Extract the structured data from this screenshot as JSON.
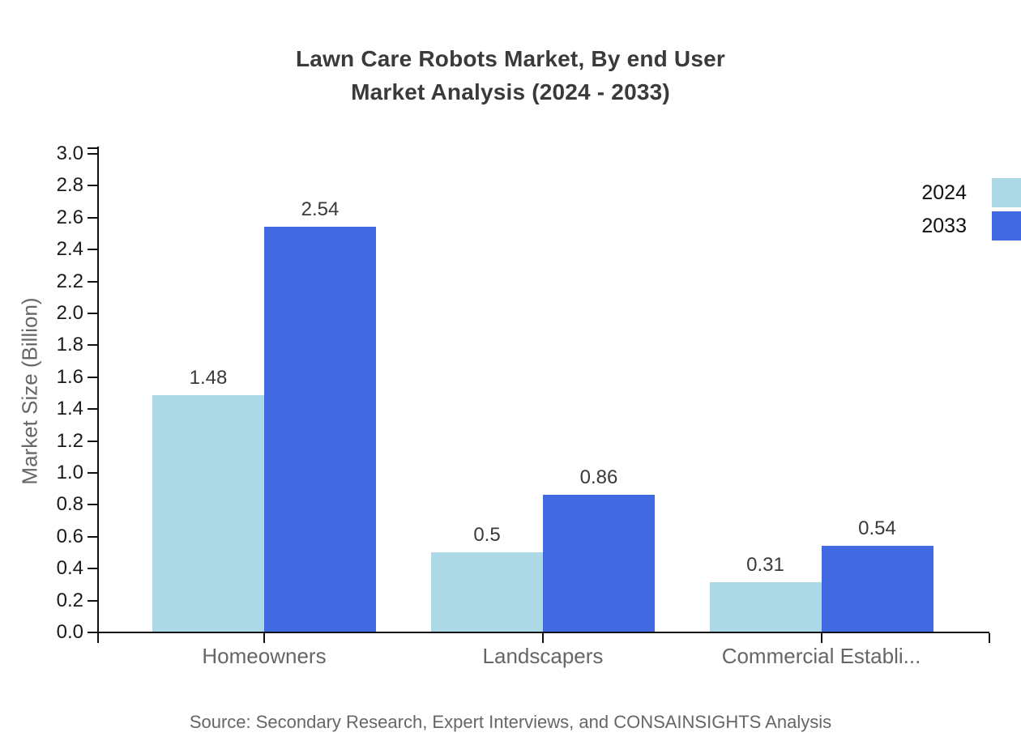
{
  "title": {
    "line1": "Lawn Care Robots Market, By end User",
    "line2": "Market Analysis (2024 - 2033)"
  },
  "source_note": "Source: Secondary Research, Expert Interviews, and CONSAINSIGHTS Analysis",
  "chart_data": {
    "type": "bar",
    "title": "Lawn Care Robots Market, By end User Market Analysis (2024 - 2033)",
    "categories": [
      "Homeowners",
      "Landscapers",
      "Commercial Establi..."
    ],
    "series": [
      {
        "name": "2024",
        "color": "#ADD8E6",
        "values": [
          1.48,
          0.5,
          0.31
        ],
        "value_labels": [
          "1.48",
          "0.5",
          "0.31"
        ]
      },
      {
        "name": "2033",
        "color": "#4169E1",
        "values": [
          2.54,
          0.86,
          0.54
        ],
        "value_labels": [
          "2.54",
          "0.86",
          "0.54"
        ]
      }
    ],
    "xlabel": "",
    "ylabel": "Market Size (Billion)",
    "ylim": [
      0.0,
      3.0
    ],
    "ytick_step": 0.2,
    "ytick_labels": [
      "0.0",
      "0.2",
      "0.4",
      "0.6",
      "0.8",
      "1.0",
      "1.2",
      "1.4",
      "1.6",
      "1.8",
      "2.0",
      "2.2",
      "2.4",
      "2.6",
      "2.8",
      "3.0"
    ],
    "grid": false,
    "legend_position": "top-right",
    "bar_value_labels_shown": true
  },
  "colors": {
    "background": "#ffffff",
    "title_text": "#3a3a3a",
    "axis": "#111111",
    "tick_label": "#1a1a1a",
    "category_label": "#666666",
    "value_label": "#3a3a3a",
    "source_text": "#666666",
    "series_2024": "#ADD8E6",
    "series_2033": "#4169E1"
  }
}
